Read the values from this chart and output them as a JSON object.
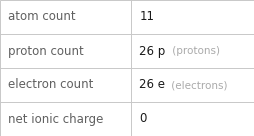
{
  "rows": [
    {
      "label": "atom count",
      "value_bold": "11",
      "suffix": ""
    },
    {
      "label": "proton count",
      "value_bold": "26 p",
      "suffix": " (protons)"
    },
    {
      "label": "electron count",
      "value_bold": "26 e",
      "suffix": " (electrons)"
    },
    {
      "label": "net ionic charge",
      "value_bold": "0",
      "suffix": ""
    }
  ],
  "col_split": 0.515,
  "background": "#ffffff",
  "border_color": "#c8c8c8",
  "text_color_label": "#606060",
  "text_color_bold": "#1a1a1a",
  "text_color_suffix": "#aaaaaa",
  "font_size_label": 8.5,
  "font_size_value": 8.5,
  "font_size_suffix": 7.5
}
